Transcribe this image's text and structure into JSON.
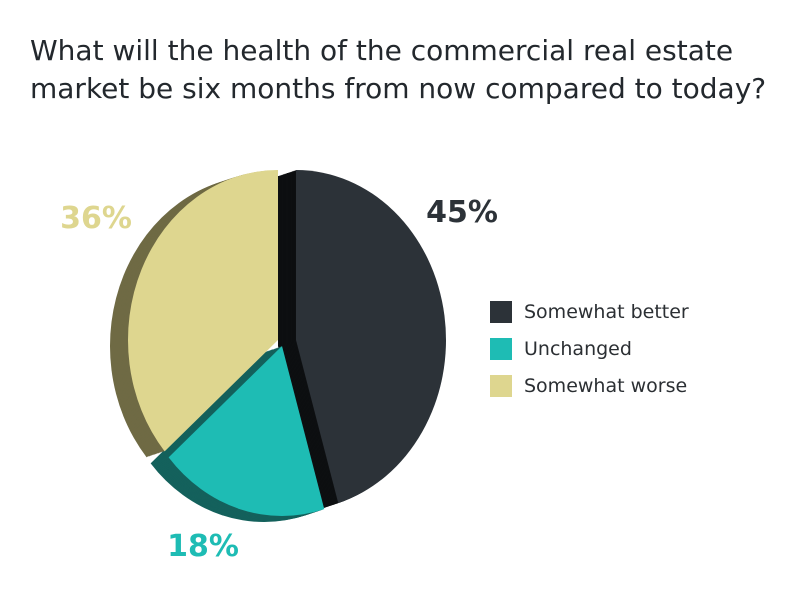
{
  "title_lines": [
    "What will the health of the commercial real estate",
    "market be six months from now compared to today?"
  ],
  "chart_data": {
    "type": "pie",
    "title": "What will the health of the commercial real estate market be six months from now compared to today?",
    "categories": [
      "Somewhat better",
      "Unchanged",
      "Somewhat worse"
    ],
    "values": [
      45,
      18,
      36
    ],
    "value_labels": [
      "45%",
      "18%",
      "36%"
    ],
    "colors": [
      "#2c3238",
      "#1ebcb4",
      "#ded68f"
    ],
    "legend_placement": "right",
    "style": "3d-exploded"
  }
}
